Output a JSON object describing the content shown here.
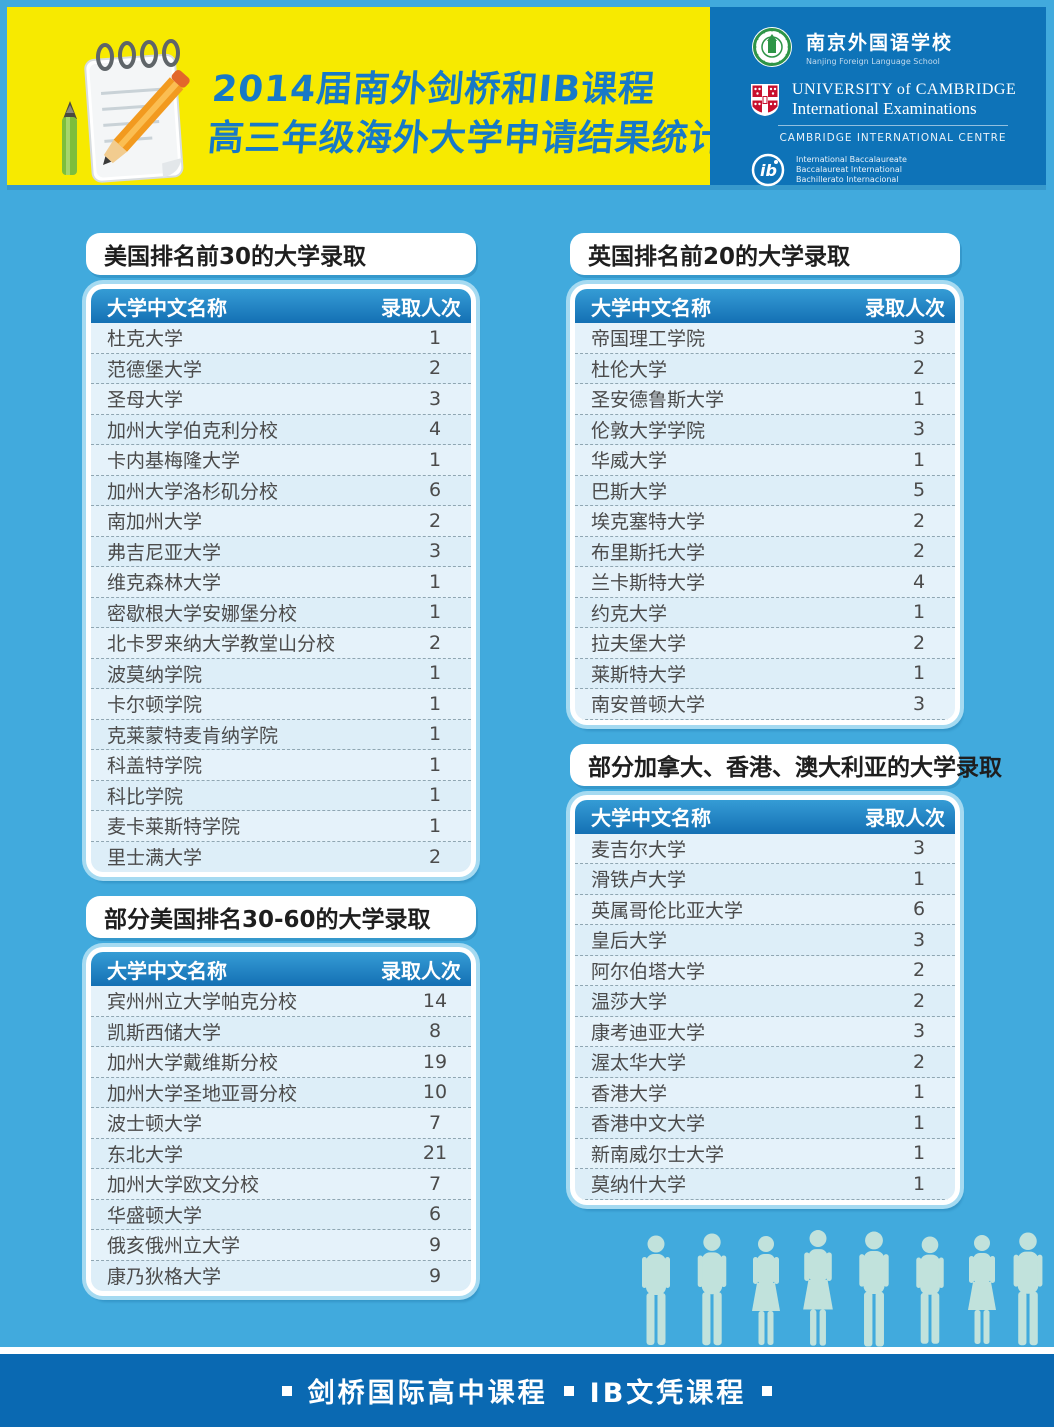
{
  "header": {
    "title_line1": "2014届南外剑桥和IB课程",
    "title_line2": "高三年级海外大学申请结果统计",
    "logos": {
      "school_cn": "南京外国语学校",
      "school_en": "Nanjing Foreign Language School",
      "cambridge_line1": "UNIVERSITY of CAMBRIDGE",
      "cambridge_line2": "International Examinations",
      "centre": "CAMBRIDGE INTERNATIONAL CENTRE",
      "ib_line1": "International Baccalaureate",
      "ib_line2": "Baccalaureat International",
      "ib_line3": "Bachillerato Internacional"
    }
  },
  "colors": {
    "header_yellow": "#F7EA00",
    "title_blue": "#1779C7",
    "background_blue": "#41AADD",
    "logo_panel_blue": "#0E73B8",
    "table_header_blue": "#1470B4",
    "row_light_blue": "#E5F2FA",
    "footer_blue": "#0A69B2"
  },
  "tables": [
    {
      "title": "美国排名前30的大学录取",
      "col_name": "大学中文名称",
      "col_count": "录取人次",
      "rows": [
        [
          "杜克大学",
          "1"
        ],
        [
          "范德堡大学",
          "2"
        ],
        [
          "圣母大学",
          "3"
        ],
        [
          "加州大学伯克利分校",
          "4"
        ],
        [
          "卡内基梅隆大学",
          "1"
        ],
        [
          "加州大学洛杉矶分校",
          "6"
        ],
        [
          "南加州大学",
          "2"
        ],
        [
          "弗吉尼亚大学",
          "3"
        ],
        [
          "维克森林大学",
          "1"
        ],
        [
          "密歇根大学安娜堡分校",
          "1"
        ],
        [
          "北卡罗来纳大学教堂山分校",
          "2"
        ],
        [
          "波莫纳学院",
          "1"
        ],
        [
          "卡尔顿学院",
          "1"
        ],
        [
          "克莱蒙特麦肯纳学院",
          "1"
        ],
        [
          "科盖特学院",
          "1"
        ],
        [
          "科比学院",
          "1"
        ],
        [
          "麦卡莱斯特学院",
          "1"
        ],
        [
          "里士满大学",
          "2"
        ]
      ]
    },
    {
      "title": "部分美国排名30-60的大学录取",
      "col_name": "大学中文名称",
      "col_count": "录取人次",
      "rows": [
        [
          "宾州州立大学帕克分校",
          "14"
        ],
        [
          "凯斯西储大学",
          "8"
        ],
        [
          "加州大学戴维斯分校",
          "19"
        ],
        [
          "加州大学圣地亚哥分校",
          "10"
        ],
        [
          "波士顿大学",
          "7"
        ],
        [
          "东北大学",
          "21"
        ],
        [
          "加州大学欧文分校",
          "7"
        ],
        [
          "华盛顿大学",
          "6"
        ],
        [
          "俄亥俄州立大学",
          "9"
        ],
        [
          "康乃狄格大学",
          "9"
        ]
      ]
    },
    {
      "title": "英国排名前20的大学录取",
      "col_name": "大学中文名称",
      "col_count": "录取人次",
      "rows": [
        [
          "帝国理工学院",
          "3"
        ],
        [
          "杜伦大学",
          "2"
        ],
        [
          "圣安德鲁斯大学",
          "1"
        ],
        [
          "伦敦大学学院",
          "3"
        ],
        [
          "华威大学",
          "1"
        ],
        [
          "巴斯大学",
          "5"
        ],
        [
          "埃克塞特大学",
          "2"
        ],
        [
          "布里斯托大学",
          "2"
        ],
        [
          "兰卡斯特大学",
          "4"
        ],
        [
          "约克大学",
          "1"
        ],
        [
          "拉夫堡大学",
          "2"
        ],
        [
          "莱斯特大学",
          "1"
        ],
        [
          "南安普顿大学",
          "3"
        ]
      ]
    },
    {
      "title": "部分加拿大、香港、澳大利亚的大学录取",
      "col_name": "大学中文名称",
      "col_count": "录取人次",
      "rows": [
        [
          "麦吉尔大学",
          "3"
        ],
        [
          "滑铁卢大学",
          "1"
        ],
        [
          "英属哥伦比亚大学",
          "6"
        ],
        [
          "皇后大学",
          "3"
        ],
        [
          "阿尔伯塔大学",
          "2"
        ],
        [
          "温莎大学",
          "2"
        ],
        [
          "康考迪亚大学",
          "3"
        ],
        [
          "渥太华大学",
          "2"
        ],
        [
          "香港大学",
          "1"
        ],
        [
          "香港中文大学",
          "1"
        ],
        [
          "新南威尔士大学",
          "1"
        ],
        [
          "莫纳什大学",
          "1"
        ]
      ]
    }
  ],
  "footer": {
    "item1": "剑桥国际高中课程",
    "item2": "IB文凭课程"
  }
}
